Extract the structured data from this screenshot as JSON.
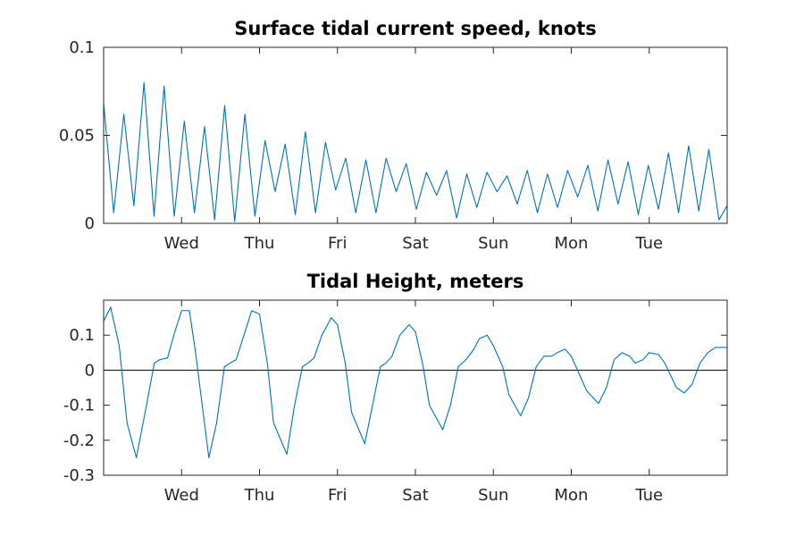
{
  "chart_data": [
    {
      "type": "line",
      "title": "Surface tidal current speed, knots",
      "xlabel": "",
      "ylabel": "",
      "days": [
        "Wed",
        "Thu",
        "Fri",
        "Sat",
        "Sun",
        "Mon",
        "Tue"
      ],
      "day_positions": [
        1,
        2,
        3,
        4,
        5,
        6,
        7
      ],
      "xlim": [
        0,
        8
      ],
      "ylim": [
        0,
        0.1
      ],
      "yticks": [
        "0",
        "0.05",
        "0.1"
      ],
      "ytick_values": [
        0,
        0.05,
        0.1
      ],
      "grid": false,
      "legend": "none",
      "series": [
        {
          "color": "#0072bd",
          "x": [
            0.0,
            0.129,
            0.259,
            0.388,
            0.518,
            0.647,
            0.776,
            0.906,
            1.035,
            1.165,
            1.294,
            1.424,
            1.553,
            1.682,
            1.812,
            1.941,
            2.071,
            2.2,
            2.329,
            2.459,
            2.588,
            2.718,
            2.847,
            2.976,
            3.106,
            3.235,
            3.365,
            3.494,
            3.624,
            3.753,
            3.882,
            4.012,
            4.141,
            4.271,
            4.4,
            4.529,
            4.659,
            4.788,
            4.918,
            5.047,
            5.176,
            5.306,
            5.435,
            5.565,
            5.694,
            5.824,
            5.953,
            6.082,
            6.212,
            6.341,
            6.471,
            6.6,
            6.729,
            6.859,
            6.988,
            7.118,
            7.247,
            7.376,
            7.506,
            7.635,
            7.765,
            7.894,
            8.0
          ],
          "y": [
            0.068,
            0.006,
            0.062,
            0.01,
            0.08,
            0.004,
            0.078,
            0.004,
            0.058,
            0.006,
            0.055,
            0.002,
            0.067,
            0.001,
            0.062,
            0.004,
            0.047,
            0.018,
            0.045,
            0.005,
            0.052,
            0.006,
            0.046,
            0.019,
            0.037,
            0.006,
            0.036,
            0.006,
            0.037,
            0.018,
            0.034,
            0.008,
            0.029,
            0.016,
            0.03,
            0.003,
            0.028,
            0.009,
            0.029,
            0.018,
            0.027,
            0.011,
            0.03,
            0.006,
            0.028,
            0.009,
            0.03,
            0.015,
            0.033,
            0.007,
            0.036,
            0.011,
            0.035,
            0.005,
            0.033,
            0.008,
            0.04,
            0.006,
            0.044,
            0.007,
            0.042,
            0.002,
            0.01
          ]
        }
      ]
    },
    {
      "type": "line",
      "title": "Tidal Height, meters",
      "xlabel": "",
      "ylabel": "",
      "days": [
        "Wed",
        "Thu",
        "Fri",
        "Sat",
        "Sun",
        "Mon",
        "Tue"
      ],
      "day_positions": [
        1,
        2,
        3,
        4,
        5,
        6,
        7
      ],
      "xlim": [
        0,
        8
      ],
      "ylim": [
        -0.3,
        0.2
      ],
      "yticks": [
        "0.1",
        "0",
        "-0.1",
        "-0.2",
        "-0.3"
      ],
      "ytick_values": [
        0.1,
        0,
        -0.1,
        -0.2,
        -0.3
      ],
      "zero_line": true,
      "grid": false,
      "legend": "none",
      "series": [
        {
          "color": "#0072bd",
          "x": [
            0.0,
            0.09,
            0.2,
            0.3,
            0.42,
            0.55,
            0.65,
            0.72,
            0.82,
            0.9,
            1.0,
            1.1,
            1.18,
            1.35,
            1.45,
            1.55,
            1.62,
            1.7,
            1.8,
            1.9,
            2.0,
            2.1,
            2.18,
            2.35,
            2.45,
            2.55,
            2.62,
            2.7,
            2.8,
            2.92,
            3.0,
            3.1,
            3.18,
            3.35,
            3.45,
            3.55,
            3.62,
            3.7,
            3.8,
            3.92,
            4.0,
            4.1,
            4.18,
            4.35,
            4.45,
            4.55,
            4.65,
            4.75,
            4.82,
            4.92,
            5.0,
            5.12,
            5.2,
            5.35,
            5.45,
            5.55,
            5.65,
            5.75,
            5.82,
            5.92,
            6.0,
            6.12,
            6.2,
            6.35,
            6.45,
            6.55,
            6.65,
            6.75,
            6.82,
            6.92,
            7.0,
            7.12,
            7.2,
            7.35,
            7.45,
            7.55,
            7.65,
            7.75,
            7.85,
            7.92,
            8.0
          ],
          "y": [
            0.14,
            0.18,
            0.07,
            -0.15,
            -0.25,
            -0.1,
            0.02,
            0.03,
            0.035,
            0.1,
            0.17,
            0.17,
            0.05,
            -0.25,
            -0.15,
            0.01,
            0.02,
            0.03,
            0.1,
            0.17,
            0.16,
            0.02,
            -0.15,
            -0.24,
            -0.1,
            0.01,
            0.02,
            0.035,
            0.1,
            0.15,
            0.13,
            0.02,
            -0.12,
            -0.21,
            -0.1,
            0.01,
            0.02,
            0.04,
            0.1,
            0.13,
            0.11,
            0.01,
            -0.1,
            -0.17,
            -0.1,
            0.01,
            0.03,
            0.06,
            0.09,
            0.1,
            0.07,
            0.01,
            -0.07,
            -0.13,
            -0.08,
            0.01,
            0.04,
            0.04,
            0.05,
            0.06,
            0.04,
            -0.02,
            -0.06,
            -0.095,
            -0.05,
            0.03,
            0.05,
            0.04,
            0.02,
            0.03,
            0.05,
            0.045,
            0.02,
            -0.05,
            -0.065,
            -0.04,
            0.02,
            0.05,
            0.065,
            0.065,
            0.065
          ]
        }
      ]
    }
  ]
}
